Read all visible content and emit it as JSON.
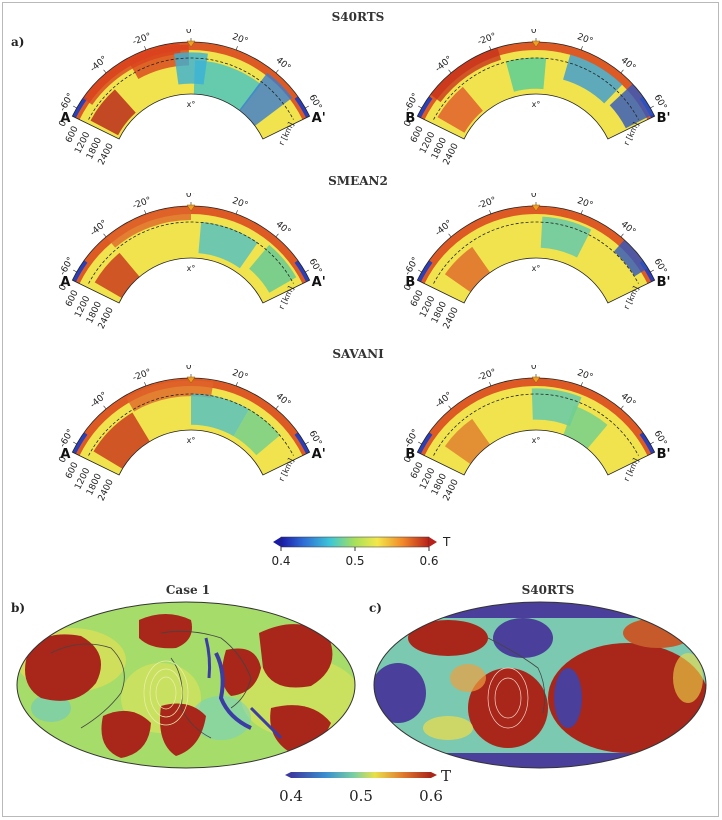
{
  "panel_a": {
    "label": "a)",
    "rows": [
      {
        "model": "S40RTS",
        "left_start": "A",
        "left_end": "A'",
        "right_start": "B",
        "right_end": "B'"
      },
      {
        "model": "SMEAN2",
        "left_start": "A",
        "left_end": "A'",
        "right_start": "B",
        "right_end": "B'"
      },
      {
        "model": "SAVANI",
        "left_start": "A",
        "left_end": "A'",
        "right_start": "B",
        "right_end": "B'"
      }
    ],
    "angle_ticks": [
      "-60°",
      "-40°",
      "-20°",
      "0°",
      "20°",
      "40°",
      "60°"
    ],
    "depth_ticks": [
      "0",
      "600",
      "1200",
      "1800",
      "2400"
    ],
    "depth_unit": "r [km]",
    "center_mark": "x°",
    "colorbar": {
      "label": "T",
      "ticks": [
        "0.4",
        "0.5",
        "0.6"
      ]
    }
  },
  "panel_b": {
    "label": "b)",
    "title": "Case 1"
  },
  "panel_c": {
    "label": "c)",
    "title": "S40RTS"
  },
  "bottom_colorbar": {
    "label": "T",
    "ticks": [
      "0.4",
      "0.5",
      "0.6"
    ]
  },
  "colors": {
    "hot": "#c0281c",
    "cold": "#3a3aa8",
    "mid": "#8fd36a",
    "yellow": "#f2e64a"
  }
}
